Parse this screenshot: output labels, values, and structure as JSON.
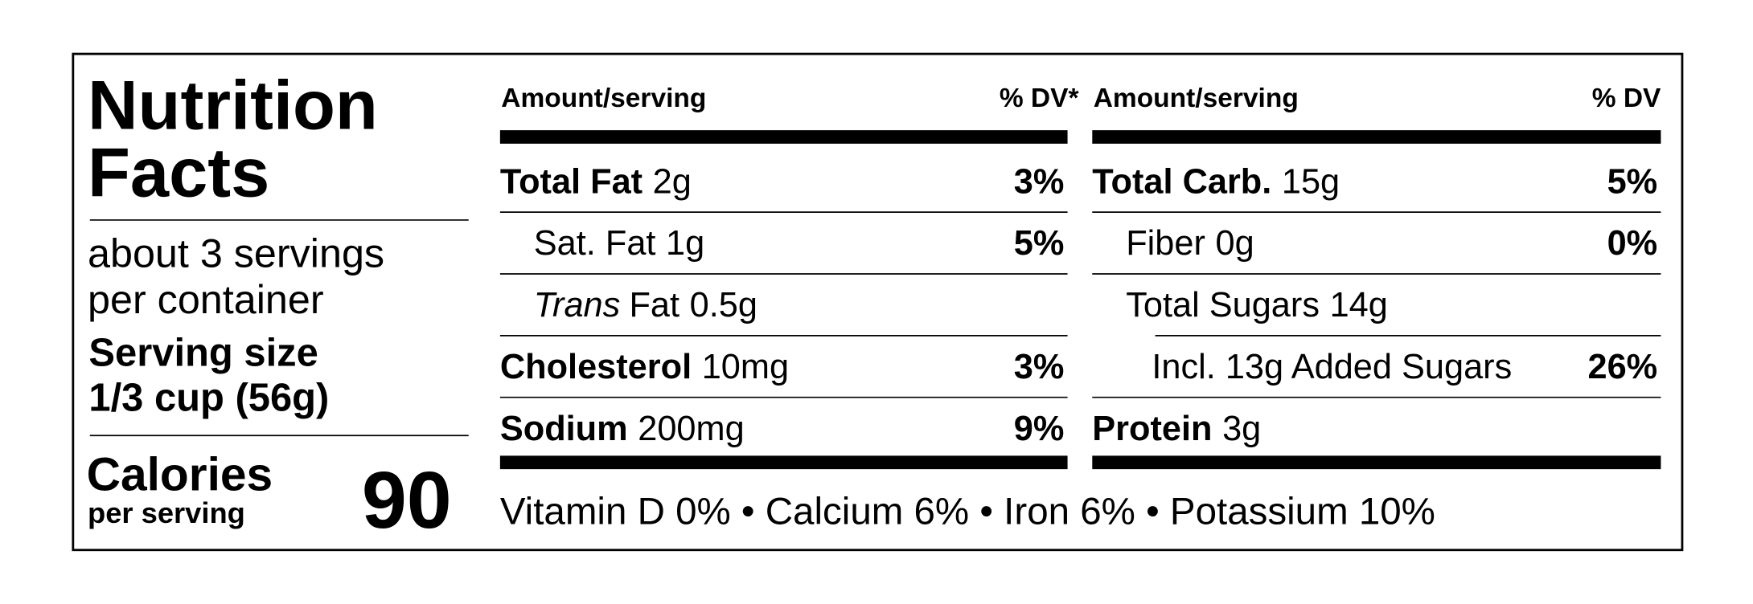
{
  "title": [
    "Nutrition",
    "Facts"
  ],
  "servings": [
    "about 3 servings",
    "per container"
  ],
  "serving_size": [
    "Serving size",
    "1/3 cup (56g)"
  ],
  "calories": {
    "label": "Calories",
    "sublabel": "per serving",
    "value": 90
  },
  "columns": [
    {
      "header": {
        "amount": "Amount/serving",
        "dv": "% DV*"
      },
      "rows": [
        {
          "name": "Total Fat",
          "amount": "2g",
          "dv": "3%",
          "bold": true,
          "indent": 0
        },
        {
          "name": "Sat. Fat",
          "amount": "1g",
          "dv": "5%",
          "bold": false,
          "indent": 1
        },
        {
          "name": "Trans",
          "name_rest": "Fat",
          "amount": "0.5g",
          "bold": false,
          "italic": true,
          "indent": 1
        },
        {
          "name": "Cholesterol",
          "amount": "10mg",
          "dv": "3%",
          "bold": true,
          "indent": 0
        },
        {
          "name": "Sodium",
          "amount": "200mg",
          "dv": "9%",
          "bold": true,
          "indent": 0
        }
      ]
    },
    {
      "header": {
        "amount": "Amount/serving",
        "dv": "% DV"
      },
      "rows": [
        {
          "name": "Total Carb.",
          "amount": "15g",
          "dv": "5%",
          "bold": true,
          "indent": 0
        },
        {
          "name": "Fiber",
          "amount": "0g",
          "dv": "0%",
          "bold": false,
          "indent": 1
        },
        {
          "name": "Total Sugars",
          "amount": "14g",
          "bold": false,
          "indent": 1
        },
        {
          "name": "Incl. 13g Added Sugars",
          "dv": "26%",
          "bold": false,
          "indent": 2
        },
        {
          "name": "Protein",
          "amount": "3g",
          "bold": true,
          "indent": 0
        }
      ]
    }
  ],
  "vitamins": "Vitamin D 0% • Calcium 6% • Iron 6% • Potassium 10%"
}
